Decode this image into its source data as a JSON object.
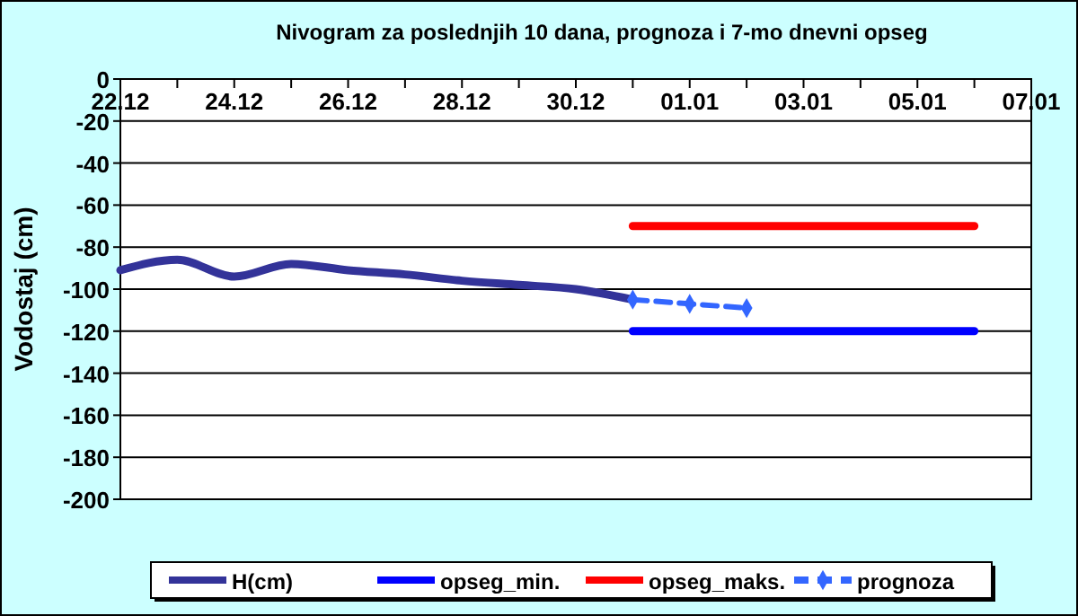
{
  "chart_data": {
    "type": "line",
    "title": "Nivogram za poslednjih 10 dana, prognoza i 7-mo dnevni opseg",
    "ylabel": "Vodostaj (cm)",
    "categories": [
      "22.12",
      null,
      "24.12",
      null,
      "26.12",
      null,
      "28.12",
      null,
      "30.12",
      null,
      "01.01",
      null,
      "03.01",
      null,
      "05.01",
      null,
      "07.01"
    ],
    "ylim": [
      -200,
      0
    ],
    "yticks": [
      0,
      -20,
      -40,
      -60,
      -80,
      -100,
      -120,
      -140,
      -160,
      -180,
      -200
    ],
    "grid": "y",
    "legend": "bottom",
    "series": [
      {
        "name": "H(cm)",
        "color": "#333399",
        "values": [
          -91,
          -86,
          -94,
          -88,
          -91,
          -93,
          -96,
          -98,
          -100,
          -105,
          null,
          null,
          null,
          null,
          null,
          null,
          null
        ]
      },
      {
        "name": "opseg_min.",
        "color": "#0000ff",
        "values": [
          null,
          null,
          null,
          null,
          null,
          null,
          null,
          null,
          null,
          -120,
          -120,
          -120,
          -120,
          -120,
          -120,
          -120,
          null
        ]
      },
      {
        "name": "opseg_maks.",
        "color": "#ff0000",
        "values": [
          null,
          null,
          null,
          null,
          null,
          null,
          null,
          null,
          null,
          -70,
          -70,
          -70,
          -70,
          -70,
          -70,
          -70,
          null
        ]
      },
      {
        "name": "prognoza",
        "color": "#3366ff",
        "values": [
          null,
          null,
          null,
          null,
          null,
          null,
          null,
          null,
          null,
          -105,
          -107,
          -109,
          null,
          null,
          null,
          null,
          null
        ],
        "marker": "diamond",
        "line_style": "dashed"
      }
    ]
  }
}
